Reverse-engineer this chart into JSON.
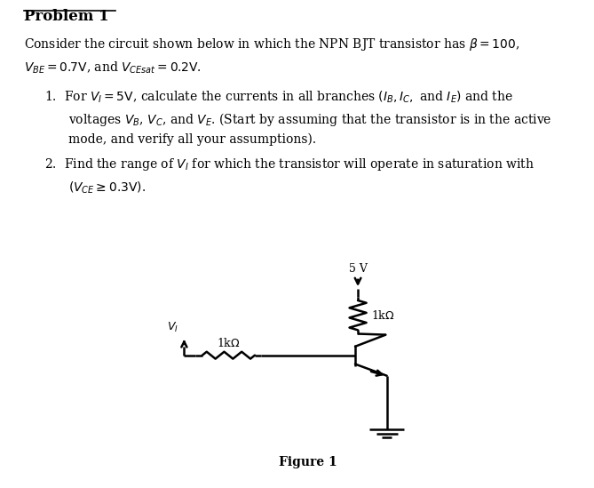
{
  "title": "Problem 1",
  "figure_label": "Figure 1",
  "background_color": "#ffffff",
  "text_color": "#000000",
  "line_color": "#000000",
  "line_width": 1.8,
  "fig_width": 6.69,
  "fig_height": 5.49
}
